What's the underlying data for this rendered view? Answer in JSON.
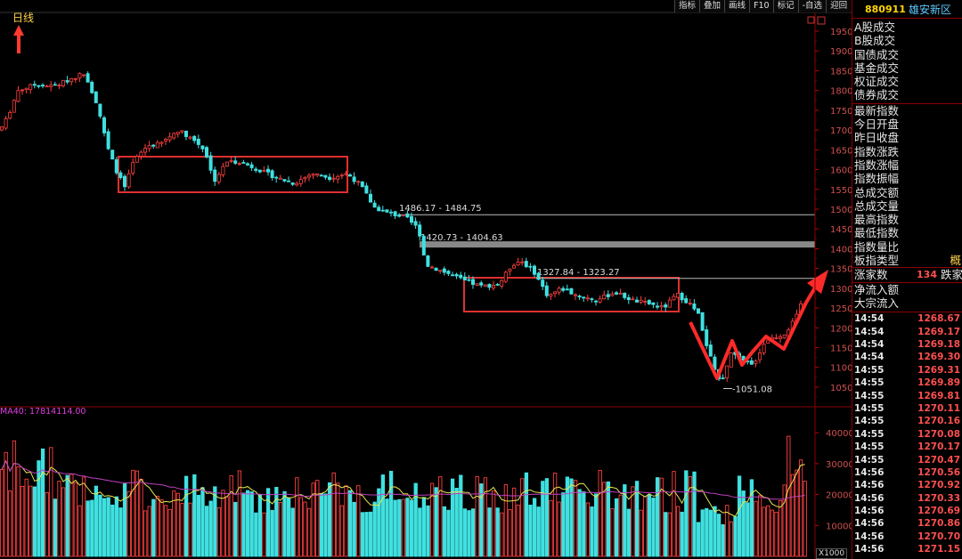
{
  "toolbar": {
    "buttons": [
      "指标",
      "叠加",
      "画线",
      "F10",
      "标记",
      "-自选",
      "迎回"
    ]
  },
  "main_chart": {
    "period_label": "日线",
    "price_axis_ticks": [
      1950,
      1900,
      1850,
      1800,
      1750,
      1700,
      1650,
      1600,
      1550,
      1500,
      1450,
      1400,
      1350,
      1300,
      1250,
      1200,
      1150,
      1100,
      1050
    ],
    "gap_lines": [
      {
        "label": "1486.17 - 1484.75",
        "price": 1486
      },
      {
        "label": "1420.73 - 1404.63",
        "price": 1412
      },
      {
        "label": "1327.84 - 1323.27",
        "price": 1325
      }
    ],
    "low_label": "1051.08",
    "low_price": 1051.08,
    "colors": {
      "up": "#ff4040",
      "down": "#40e0e0",
      "box": "#e03030",
      "gap_thick": "#888888",
      "gap_thin": "#bbbbbb",
      "axis": "#8b0000"
    }
  },
  "volume_chart": {
    "ma_label": "MA40: 17814114.00",
    "volume_axis_ticks": [
      "40000",
      "30000",
      "20000",
      "10000"
    ],
    "zoom_label": "X1000"
  },
  "side_panel": {
    "code": "880911",
    "name": "雄安新区",
    "fields_top": [
      "A股成交",
      "B股成交",
      "国债成交",
      "基金成交",
      "权证成交",
      "债券成交"
    ],
    "fields_index": [
      "最新指数",
      "今日开盘",
      "昨日收盘",
      "指数涨跌",
      "指数涨幅",
      "指数振幅",
      "总成交额",
      "总成交量",
      "最高指数",
      "最低指数",
      "指数量比",
      "板指类型"
    ],
    "board_type_value": "概",
    "up_count_label": "涨家数",
    "up_count_value": "134",
    "down_count_label": "跌家",
    "flow_fields": [
      "净流入额",
      "大宗流入"
    ],
    "ticks": [
      {
        "time": "14:54",
        "price": "1268.67"
      },
      {
        "time": "14:54",
        "price": "1269.17"
      },
      {
        "time": "14:54",
        "price": "1269.18"
      },
      {
        "time": "14:54",
        "price": "1269.30"
      },
      {
        "time": "14:55",
        "price": "1269.31"
      },
      {
        "time": "14:55",
        "price": "1269.89"
      },
      {
        "time": "14:55",
        "price": "1269.81"
      },
      {
        "time": "14:55",
        "price": "1270.11"
      },
      {
        "time": "14:55",
        "price": "1270.16"
      },
      {
        "time": "14:55",
        "price": "1270.08"
      },
      {
        "time": "14:55",
        "price": "1270.17"
      },
      {
        "time": "14:55",
        "price": "1270.47"
      },
      {
        "time": "14:56",
        "price": "1270.56"
      },
      {
        "time": "14:56",
        "price": "1270.92"
      },
      {
        "time": "14:56",
        "price": "1270.33"
      },
      {
        "time": "14:56",
        "price": "1270.69"
      },
      {
        "time": "14:56",
        "price": "1270.86"
      },
      {
        "time": "14:56",
        "price": "1270.70"
      },
      {
        "time": "14:56",
        "price": "1271.15"
      }
    ]
  }
}
